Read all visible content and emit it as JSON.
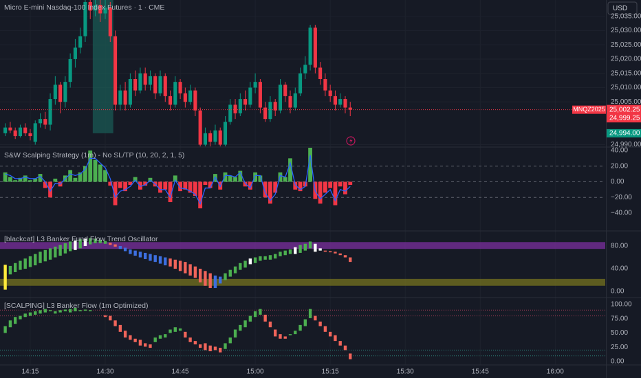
{
  "currency": "USD",
  "chart_data": [
    {
      "type": "candlestick",
      "title": "Micro E-mini Nasdaq-100 Index Futures · 1 · CME",
      "x": [
        850,
        851,
        852,
        853,
        854,
        855,
        856,
        857,
        858,
        859,
        860,
        861,
        862,
        863,
        864,
        865,
        866,
        867,
        868,
        869,
        870,
        871,
        872,
        873,
        874,
        875,
        876,
        877,
        878,
        879,
        880,
        881,
        882,
        883,
        884,
        885,
        886,
        887,
        888,
        889,
        890,
        891,
        892,
        893,
        894,
        895,
        896,
        897,
        898,
        899,
        900,
        901,
        902,
        903,
        904,
        905,
        906,
        907,
        908,
        909,
        910,
        911,
        912,
        913,
        914,
        915,
        916,
        917,
        918,
        919
      ],
      "open": [
        24994,
        24996,
        24995,
        24993,
        24996,
        24994,
        24991,
        24997.5,
        24999,
        24997,
        25006,
        25011,
        25005,
        25012,
        25020,
        25024,
        25028,
        25040,
        25037,
        25039,
        25036,
        25038,
        25028,
        25004,
        25009,
        25004,
        25013,
        25009,
        25015,
        25011,
        25014,
        25008,
        25014,
        25007,
        25004,
        25012,
        25008,
        25005,
        25009,
        25002,
        24990,
        24994,
        24991,
        24995,
        24990,
        24998,
        25004,
        25001,
        25006,
        25004,
        25010,
        25012,
        25003,
        24999,
        25005,
        25002,
        25011,
        25007,
        25003,
        25008,
        25015,
        25018,
        25031,
        25017,
        25013,
        25009,
        25007,
        25004,
        25006,
        25003
      ],
      "high": [
        24997.5,
        24998,
        24996,
        24997,
        24997.5,
        24995.5,
        24998.5,
        25001,
        25001.5,
        25008,
        25014,
        25012,
        25014,
        25022,
        25027,
        25031,
        25045,
        25046,
        25043,
        25042,
        25041,
        25040,
        25030,
        25011,
        25012,
        25015,
        25016,
        25017,
        25017,
        25016,
        25015,
        25016,
        25015,
        25009,
        25014,
        25013,
        25010,
        25011,
        25010,
        25003,
        24996,
        24995,
        24997,
        24996,
        25000,
        25006,
        25006,
        25008,
        25009,
        25012,
        25015,
        25013,
        25005,
        25007,
        25006,
        25013,
        25012,
        25009,
        25010,
        25017,
        25021,
        25032,
        25032,
        25019,
        25015,
        25011,
        25009,
        25008,
        25007,
        25005
      ],
      "low": [
        24993,
        24994,
        24992,
        24992.5,
        24993,
        24991.5,
        24990,
        24996,
        24995.5,
        24995,
        25004,
        25001,
        25003,
        25010,
        25017,
        25022,
        25026,
        25034,
        25035,
        25033,
        25034,
        25026,
        25002,
        25002,
        25002,
        25003,
        25007,
        25008,
        25009,
        25009,
        25006,
        25007,
        25005,
        25002,
        25003,
        25006,
        25003,
        25004,
        25000,
        24989,
        24989,
        24989,
        24990,
        24989,
        24989,
        24997,
        24999,
        25000,
        25002,
        25003,
        25008,
        25001,
        24998,
        24998,
        25000,
        25001,
        25005,
        25001,
        25002,
        25007,
        25013,
        25016,
        25015,
        25011,
        25007,
        25005,
        25002,
        25003,
        25001,
        25000
      ],
      "close": [
        24996,
        24995,
        24993,
        24996,
        24994,
        24993,
        24997.5,
        24999,
        24997,
        25006,
        25011,
        25005,
        25012,
        25020,
        25024,
        25028,
        25040,
        25037,
        25039,
        25036,
        25038,
        25028,
        25004,
        25009,
        25004,
        25013,
        25009,
        25015,
        25011,
        25014,
        25008,
        25014,
        25007,
        25004,
        25012,
        25008,
        25005,
        25009,
        25002,
        24990,
        24994,
        24991,
        24995,
        24990,
        24998,
        25004,
        25001,
        25006,
        25004,
        25010,
        25012,
        25003,
        24999,
        25005,
        25002,
        25011,
        25007,
        25003,
        25008,
        25015,
        25018,
        25031,
        25017,
        25013,
        25009,
        25007,
        25004,
        25006,
        25003,
        25002.25
      ],
      "up_color": "#089981",
      "down_color": "#f23645",
      "xlim": [
        848.95,
        970
      ],
      "ylim": [
        24989.4,
        25040.7
      ],
      "yticks": [
        {
          "value": 25035,
          "label": "25,035.00"
        },
        {
          "value": 25030,
          "label": "25,030.00"
        },
        {
          "value": 25025,
          "label": "25,025.00"
        },
        {
          "value": 25020,
          "label": "25,020.00"
        },
        {
          "value": 25015,
          "label": "25,015.00"
        },
        {
          "value": 25010,
          "label": "25,010.00"
        },
        {
          "value": 25005,
          "label": "25,005.00"
        },
        {
          "value": 24990,
          "label": "24,990.00"
        }
      ],
      "grid": true,
      "last_price": {
        "value": 25002.25,
        "label": "25,002.25",
        "symbol": "MNQZ2025",
        "countdown": "00:39",
        "color": "#f23645"
      },
      "price_markers": [
        {
          "value": 24999.25,
          "label": "24,999.25",
          "color": "#f23645"
        },
        {
          "value": 24994,
          "label": "24,994.00",
          "color": "#089981"
        }
      ],
      "highlight": {
        "x": [
          867.5,
          871.6
        ],
        "low": 24994,
        "color": "#1a5e57"
      }
    },
    {
      "type": "histogram-line",
      "title": "S&W Scalping Strategy (1m) - No SL/TP (10, 20, 2, 1, 5)",
      "x": [
        850,
        851,
        852,
        853,
        854,
        855,
        856,
        857,
        858,
        859,
        860,
        861,
        862,
        863,
        864,
        865,
        866,
        867,
        868,
        869,
        870,
        871,
        872,
        873,
        874,
        875,
        876,
        877,
        878,
        879,
        880,
        881,
        882,
        883,
        884,
        885,
        886,
        887,
        888,
        889,
        890,
        891,
        892,
        893,
        894,
        895,
        896,
        897,
        898,
        899,
        900,
        901,
        902,
        903,
        904,
        905,
        906,
        907,
        908,
        909,
        910,
        911,
        912,
        913,
        914,
        915,
        916,
        917,
        918,
        919
      ],
      "values": [
        12,
        6,
        2,
        5,
        8,
        2,
        4,
        10,
        -8,
        -20,
        4,
        -6,
        8,
        15,
        5,
        12,
        20,
        40,
        28,
        22,
        15,
        -5,
        -30,
        -8,
        -12,
        -4,
        6,
        -10,
        -5,
        5,
        -6,
        -14,
        -10,
        -26,
        8,
        -12,
        -10,
        -14,
        -18,
        -34,
        -4,
        -8,
        10,
        -10,
        12,
        8,
        6,
        14,
        -6,
        -10,
        12,
        8,
        -20,
        -28,
        -14,
        12,
        6,
        30,
        -10,
        -12,
        -6,
        44,
        -22,
        -28,
        -14,
        -8,
        -30,
        -6,
        -16,
        -4
      ],
      "line_values": [
        10,
        8,
        4,
        4,
        6,
        4,
        4,
        7,
        0,
        -12,
        -2,
        -3,
        4,
        10,
        8,
        10,
        16,
        30,
        30,
        24,
        18,
        4,
        -20,
        -12,
        -10,
        -6,
        2,
        -6,
        -4,
        2,
        -3,
        -10,
        -10,
        -20,
        2,
        -8,
        -9,
        -12,
        -16,
        -28,
        -8,
        -8,
        6,
        -6,
        8,
        8,
        6,
        12,
        -2,
        -8,
        8,
        8,
        -14,
        -24,
        -16,
        8,
        6,
        24,
        -4,
        -10,
        -6,
        34,
        -12,
        -22,
        -16,
        -10,
        -24,
        -10,
        -12,
        -6
      ],
      "pos_color": "#4caf50",
      "neg_color": "#f23645",
      "line_color": "#2962ff",
      "xlim": [
        848.95,
        970
      ],
      "ylim": [
        -62,
        43.5
      ],
      "yticks": [
        {
          "value": 40,
          "label": "40.00"
        },
        {
          "value": 20,
          "label": "20.00"
        },
        {
          "value": 0,
          "label": "0.00"
        },
        {
          "value": -20,
          "label": "−20.00"
        },
        {
          "value": -40,
          "label": "−40.00"
        }
      ],
      "dashed_levels": [
        20,
        0,
        -20
      ]
    },
    {
      "type": "range-bar",
      "title": "[blackcat] L3 Banker Fund Flow Trend Oscillator",
      "x": [
        850,
        851,
        852,
        853,
        854,
        855,
        856,
        857,
        858,
        859,
        860,
        861,
        862,
        863,
        864,
        865,
        866,
        867,
        868,
        869,
        870,
        871,
        872,
        873,
        874,
        875,
        876,
        877,
        878,
        879,
        880,
        881,
        882,
        883,
        884,
        885,
        886,
        887,
        888,
        889,
        890,
        891,
        892,
        893,
        894,
        895,
        896,
        897,
        898,
        899,
        900,
        901,
        902,
        903,
        904,
        905,
        906,
        907,
        908,
        909,
        910,
        911,
        912,
        913,
        914,
        915,
        916,
        917,
        918,
        919
      ],
      "high": [
        47,
        45,
        50,
        54,
        58,
        62,
        66,
        70,
        73,
        76,
        79,
        82,
        85,
        88,
        90,
        92,
        93,
        94,
        93,
        91,
        89,
        86,
        83,
        80,
        77,
        74,
        72,
        70,
        68,
        66,
        64,
        62,
        60,
        58,
        56,
        54,
        52,
        48,
        44,
        40,
        36,
        32,
        28,
        26,
        32,
        38,
        44,
        50,
        54,
        58,
        60,
        62,
        62,
        64,
        66,
        70,
        72,
        74,
        78,
        82,
        84,
        88,
        84,
        76,
        72,
        71,
        70,
        67,
        64,
        60
      ],
      "low": [
        3,
        30,
        34,
        38,
        40,
        43,
        46,
        50,
        53,
        56,
        60,
        63,
        67,
        71,
        73,
        76,
        80,
        83,
        85,
        85,
        84,
        82,
        79,
        75,
        71,
        66,
        63,
        60,
        57,
        54,
        52,
        49,
        46,
        44,
        40,
        36,
        32,
        28,
        24,
        16,
        10,
        6,
        6,
        14,
        20,
        26,
        32,
        38,
        42,
        48,
        50,
        54,
        56,
        56,
        58,
        62,
        64,
        66,
        66,
        68,
        72,
        76,
        70,
        72,
        70,
        69,
        67,
        64,
        60,
        52
      ],
      "color_index": [
        4,
        0,
        0,
        0,
        0,
        0,
        0,
        0,
        0,
        0,
        0,
        0,
        0,
        0,
        1,
        0,
        1,
        0,
        0,
        0,
        0,
        3,
        3,
        2,
        2,
        2,
        2,
        2,
        2,
        2,
        2,
        2,
        2,
        3,
        3,
        3,
        3,
        3,
        3,
        3,
        3,
        3,
        2,
        2,
        0,
        0,
        0,
        0,
        0,
        1,
        0,
        0,
        0,
        0,
        0,
        0,
        0,
        0,
        1,
        0,
        0,
        0,
        1,
        1,
        3,
        3,
        3,
        3,
        3,
        3
      ],
      "palette": [
        "#4caf50",
        "#ffffff",
        "#3d6fe0",
        "#f0645a",
        "#ffeb3b"
      ],
      "xlim": [
        848.95,
        970
      ],
      "ylim": [
        -9.7,
        105.5
      ],
      "yticks": [
        {
          "value": 80,
          "label": "80.00"
        },
        {
          "value": 40,
          "label": "40.00"
        },
        {
          "value": 0,
          "label": "0.00"
        }
      ],
      "bands": [
        {
          "from": 75,
          "to": 87,
          "color": "#7b2f9e"
        },
        {
          "from": 10,
          "to": 22,
          "color": "#75731f"
        }
      ]
    },
    {
      "type": "range-bar",
      "title": "[SCALPING] L3 Banker Flow (1m Optimized)",
      "x": [
        850,
        851,
        852,
        853,
        854,
        855,
        856,
        857,
        858,
        859,
        860,
        861,
        862,
        863,
        864,
        865,
        866,
        867,
        868,
        869,
        870,
        871,
        872,
        873,
        874,
        875,
        876,
        877,
        878,
        879,
        880,
        881,
        882,
        883,
        884,
        885,
        886,
        887,
        888,
        889,
        890,
        891,
        892,
        893,
        894,
        895,
        896,
        897,
        898,
        899,
        900,
        901,
        902,
        903,
        904,
        905,
        906,
        907,
        908,
        909,
        910,
        911,
        912,
        913,
        914,
        915,
        916,
        917,
        918,
        919
      ],
      "high": [
        62,
        72,
        78,
        80,
        84,
        86,
        88,
        90,
        92,
        90,
        88,
        90,
        91,
        92,
        94,
        90,
        91,
        90,
        null,
        null,
        81,
        80,
        72,
        64,
        54,
        46,
        40,
        38,
        32,
        30,
        42,
        46,
        48,
        56,
        60,
        58,
        52,
        42,
        36,
        30,
        32,
        28,
        26,
        24,
        32,
        42,
        56,
        64,
        72,
        80,
        88,
        92,
        82,
        70,
        56,
        48,
        44,
        48,
        54,
        64,
        74,
        92,
        80,
        70,
        62,
        52,
        46,
        36,
        28,
        14
      ],
      "low": [
        50,
        60,
        66,
        74,
        78,
        80,
        82,
        84,
        86,
        88,
        84,
        86,
        88,
        86,
        88,
        88,
        89,
        88,
        null,
        null,
        78,
        72,
        62,
        52,
        42,
        38,
        34,
        28,
        26,
        24,
        34,
        40,
        42,
        50,
        52,
        54,
        42,
        34,
        30,
        24,
        20,
        18,
        20,
        16,
        22,
        32,
        42,
        54,
        60,
        70,
        78,
        82,
        70,
        60,
        44,
        40,
        40,
        46,
        48,
        54,
        62,
        76,
        72,
        62,
        52,
        44,
        36,
        28,
        20,
        4
      ],
      "color_index": [
        0,
        0,
        0,
        0,
        0,
        0,
        0,
        0,
        0,
        0,
        0,
        0,
        0,
        0,
        0,
        0,
        0,
        0,
        0,
        0,
        1,
        1,
        1,
        1,
        1,
        1,
        1,
        1,
        1,
        1,
        0,
        0,
        0,
        0,
        0,
        0,
        1,
        1,
        1,
        1,
        1,
        1,
        1,
        1,
        0,
        0,
        0,
        0,
        0,
        0,
        0,
        0,
        1,
        1,
        1,
        1,
        1,
        0,
        0,
        0,
        0,
        0,
        1,
        1,
        1,
        1,
        1,
        1,
        1,
        1
      ],
      "palette": [
        "#4caf50",
        "#f0645a"
      ],
      "xlim": [
        848.95,
        970
      ],
      "ylim": [
        -6,
        110.8
      ],
      "yticks": [
        {
          "value": 100,
          "label": "100.00"
        },
        {
          "value": 75,
          "label": "75.00"
        },
        {
          "value": 50,
          "label": "50.00"
        },
        {
          "value": 25,
          "label": "25.00"
        },
        {
          "value": 0,
          "label": "0.00"
        }
      ],
      "levels": [
        {
          "value": 90,
          "color": "#9c3b52"
        },
        {
          "value": 80,
          "color": "#9c3b52"
        },
        {
          "value": 20,
          "color": "#2b7f77"
        },
        {
          "value": 10,
          "color": "#2b7f77"
        }
      ],
      "xticks": [
        {
          "value": 855,
          "label": "14:15"
        },
        {
          "value": 870,
          "label": "14:30"
        },
        {
          "value": 885,
          "label": "14:45"
        },
        {
          "value": 900,
          "label": "15:00"
        },
        {
          "value": 915,
          "label": "15:15"
        },
        {
          "value": 930,
          "label": "15:30"
        },
        {
          "value": 945,
          "label": "15:45"
        },
        {
          "value": 960,
          "label": "16:00"
        }
      ]
    }
  ]
}
